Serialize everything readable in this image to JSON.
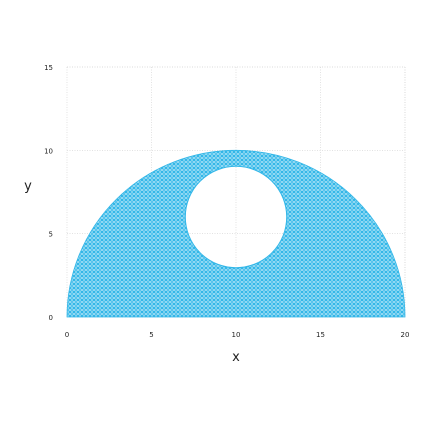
{
  "chart_data": {
    "type": "area",
    "title": "",
    "xlabel": "x",
    "ylabel": "y",
    "xlim": [
      0,
      20
    ],
    "ylim": [
      0,
      15
    ],
    "x_ticks": [
      0,
      5,
      10,
      15,
      20
    ],
    "y_ticks": [
      0,
      5,
      10,
      15
    ],
    "x_tick_labels": [
      "0",
      "5",
      "10",
      "15",
      "20"
    ],
    "y_tick_labels": [
      "0",
      "5",
      "10",
      "15"
    ],
    "grid": true,
    "shape": "half-annulus region (filled mesh) with a circular hole",
    "outer_boundary": {
      "center_x": 10,
      "center_y": 0,
      "radius": 10,
      "half": "upper"
    },
    "hole": {
      "center_x": 10,
      "center_y": 6,
      "radius": 3
    },
    "fill_color": "#33B7E8",
    "mesh_line_color": "#ffffff"
  }
}
